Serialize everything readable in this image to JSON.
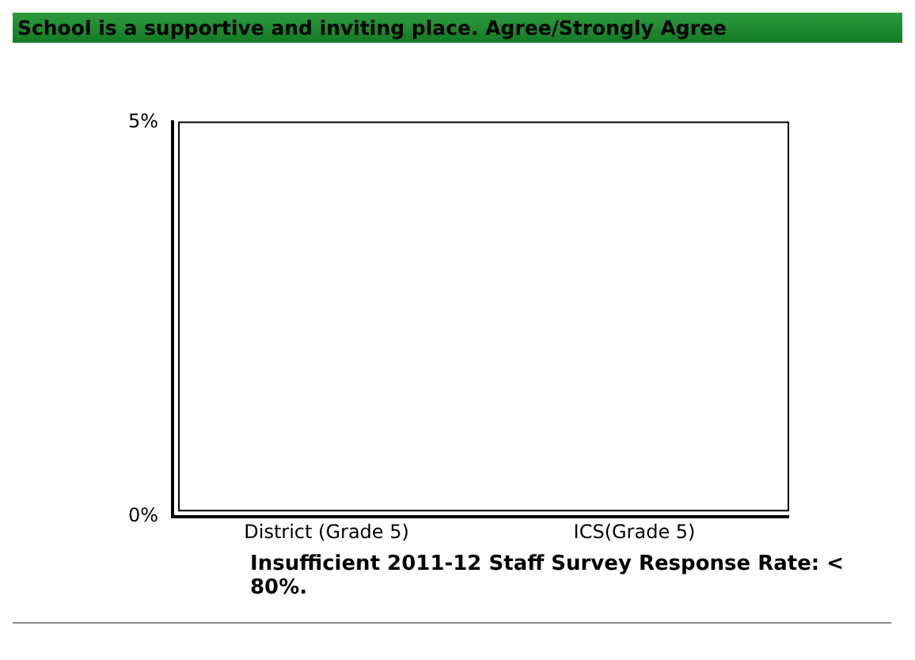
{
  "chart_data": {
    "type": "bar",
    "title": "School is a supportive and inviting place. Agree/Strongly Agree",
    "categories": [
      "District (Grade 5)",
      "ICS(Grade 5)"
    ],
    "values": [
      null,
      null
    ],
    "ylim": [
      0,
      5
    ],
    "yticks": [
      {
        "value": 0,
        "label": "0%"
      },
      {
        "value": 5,
        "label": "5%"
      }
    ],
    "grid": false,
    "annotations": [
      "Insufficient 2011-12 Staff Survey Response Rate: < 80%."
    ]
  }
}
